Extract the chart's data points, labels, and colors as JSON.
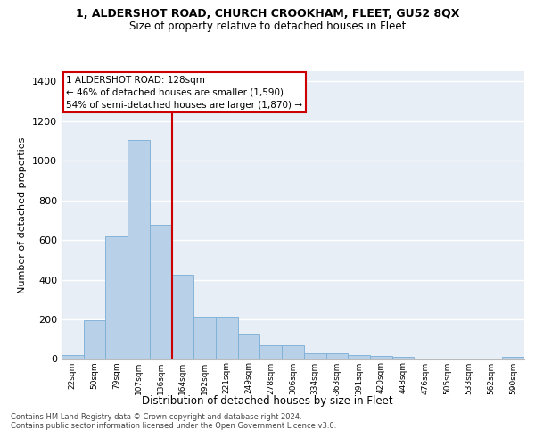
{
  "title_line1": "1, ALDERSHOT ROAD, CHURCH CROOKHAM, FLEET, GU52 8QX",
  "title_line2": "Size of property relative to detached houses in Fleet",
  "xlabel": "Distribution of detached houses by size in Fleet",
  "ylabel": "Number of detached properties",
  "categories": [
    "22sqm",
    "50sqm",
    "79sqm",
    "107sqm",
    "136sqm",
    "164sqm",
    "192sqm",
    "221sqm",
    "249sqm",
    "278sqm",
    "306sqm",
    "334sqm",
    "363sqm",
    "391sqm",
    "420sqm",
    "448sqm",
    "476sqm",
    "505sqm",
    "533sqm",
    "562sqm",
    "590sqm"
  ],
  "values": [
    18,
    195,
    620,
    1105,
    675,
    425,
    215,
    215,
    130,
    68,
    68,
    28,
    28,
    18,
    14,
    10,
    0,
    0,
    0,
    0,
    12
  ],
  "bar_color": "#b8d0e8",
  "bar_edge_color": "#7aaed6",
  "background_color": "#e8eef6",
  "grid_color": "#ffffff",
  "annotation_text": "1 ALDERSHOT ROAD: 128sqm\n← 46% of detached houses are smaller (1,590)\n54% of semi-detached houses are larger (1,870) →",
  "annotation_box_color": "#ffffff",
  "annotation_box_edge": "#cc0000",
  "property_line_x": 4.5,
  "ylim": [
    0,
    1450
  ],
  "yticks": [
    0,
    200,
    400,
    600,
    800,
    1000,
    1200,
    1400
  ],
  "footer_line1": "Contains HM Land Registry data © Crown copyright and database right 2024.",
  "footer_line2": "Contains public sector information licensed under the Open Government Licence v3.0."
}
